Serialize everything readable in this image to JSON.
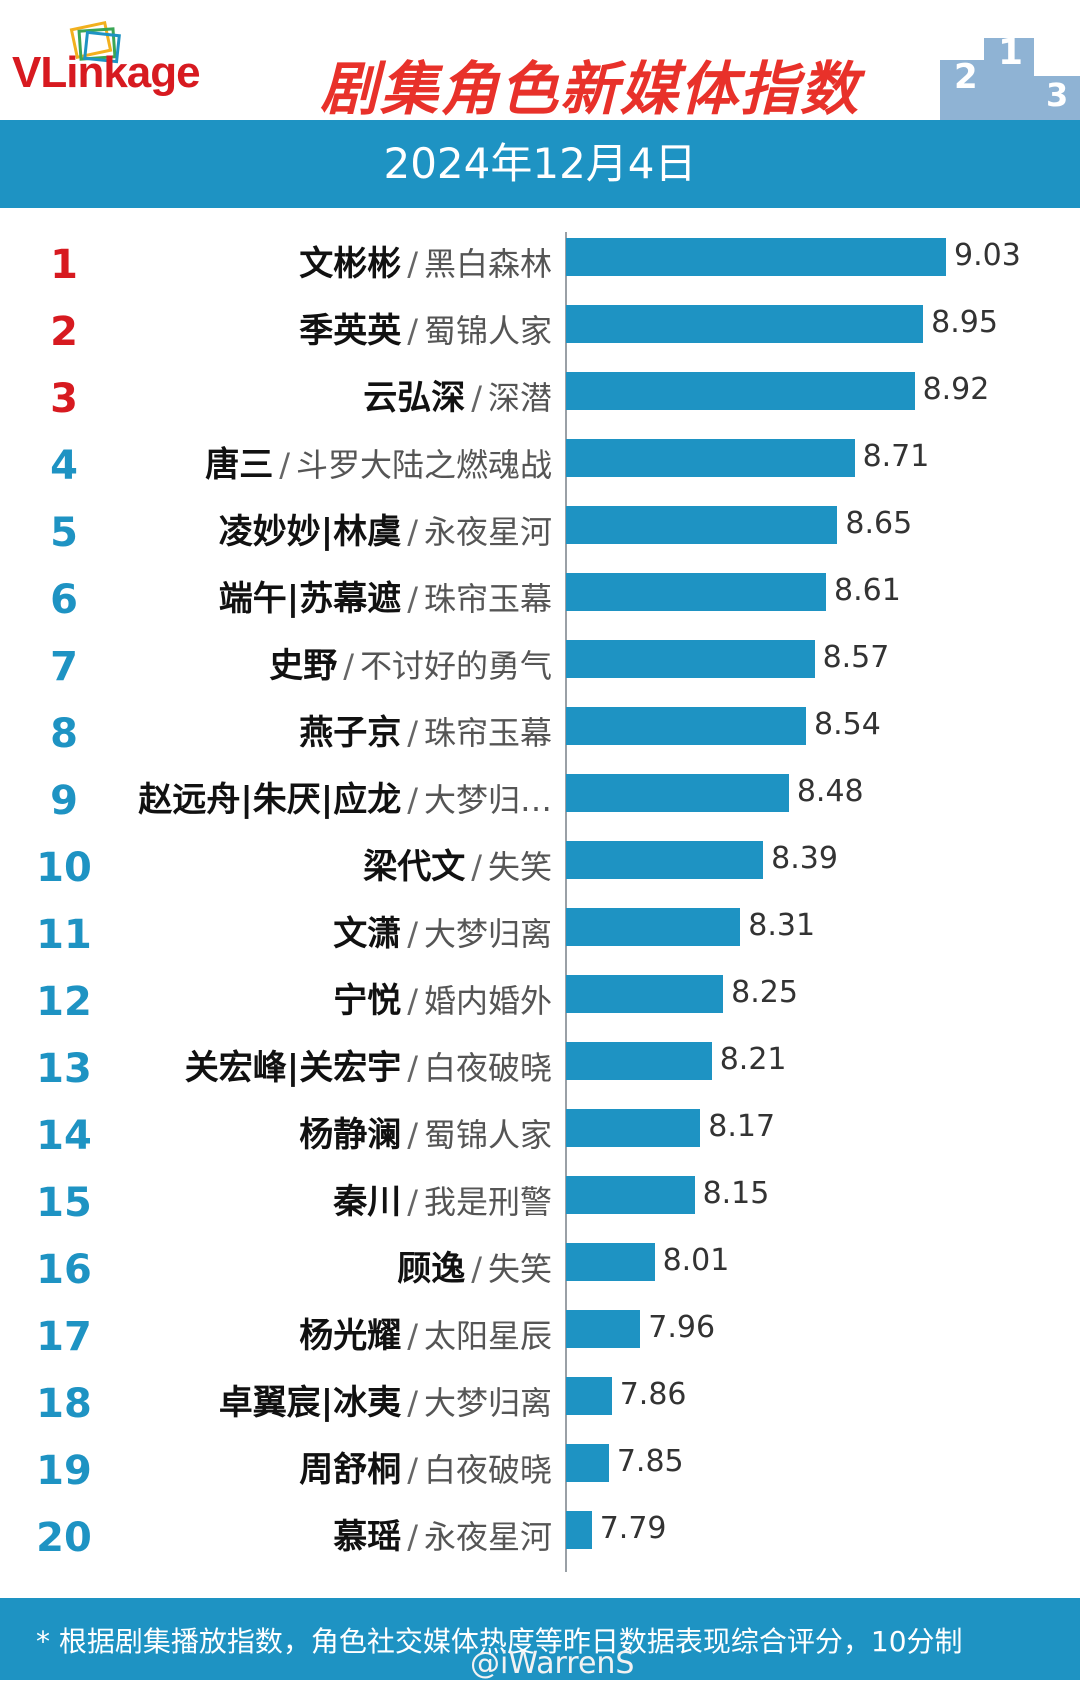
{
  "header": {
    "logo_text": "VLinkage",
    "title": "剧集角色新媒体指数",
    "date": "2024年12月4日"
  },
  "colors": {
    "bar": "#1e93c3",
    "top3_rank": "#d71a20",
    "other_rank": "#1e93c3",
    "title": "#e8312a"
  },
  "chart_data": {
    "type": "bar",
    "orientation": "horizontal",
    "title": "剧集角色新媒体指数",
    "subtitle": "2024年12月4日",
    "categories": [
      "文彬彬 / 黑白森林",
      "季英英 / 蜀锦人家",
      "云弘深 / 深潜",
      "唐三 / 斗罗大陆之燃魂战",
      "凌妙妙|林虞 / 永夜星河",
      "端午|苏幕遮 / 珠帘玉幕",
      "史野 / 不讨好的勇气",
      "燕子京 / 珠帘玉幕",
      "赵远舟|朱厌|应龙 / 大梦归…",
      "梁代文 / 失笑",
      "文潇 / 大梦归离",
      "宁悦 / 婚内婚外",
      "关宏峰|关宏宇 / 白夜破晓",
      "杨静澜 / 蜀锦人家",
      "秦川 / 我是刑警",
      "顾逸 / 失笑",
      "杨光耀 / 太阳星辰",
      "卓翼宸|冰夷 / 大梦归离",
      "周舒桐 / 白夜破晓",
      "慕瑶 / 永夜星河"
    ],
    "rows": [
      {
        "rank": "1",
        "role": "文彬彬",
        "drama": "黑白森林",
        "value": 9.03
      },
      {
        "rank": "2",
        "role": "季英英",
        "drama": "蜀锦人家",
        "value": 8.95
      },
      {
        "rank": "3",
        "role": "云弘深",
        "drama": "深潜",
        "value": 8.92
      },
      {
        "rank": "4",
        "role": "唐三",
        "drama": "斗罗大陆之燃魂战",
        "value": 8.71
      },
      {
        "rank": "5",
        "role": "凌妙妙|林虞",
        "drama": "永夜星河",
        "value": 8.65
      },
      {
        "rank": "6",
        "role": "端午|苏幕遮",
        "drama": "珠帘玉幕",
        "value": 8.61
      },
      {
        "rank": "7",
        "role": "史野",
        "drama": "不讨好的勇气",
        "value": 8.57
      },
      {
        "rank": "8",
        "role": "燕子京",
        "drama": "珠帘玉幕",
        "value": 8.54
      },
      {
        "rank": "9",
        "role": "赵远舟|朱厌|应龙",
        "drama": "大梦归…",
        "value": 8.48
      },
      {
        "rank": "10",
        "role": "梁代文",
        "drama": "失笑",
        "value": 8.39
      },
      {
        "rank": "11",
        "role": "文潇",
        "drama": "大梦归离",
        "value": 8.31
      },
      {
        "rank": "12",
        "role": "宁悦",
        "drama": "婚内婚外",
        "value": 8.25
      },
      {
        "rank": "13",
        "role": "关宏峰|关宏宇",
        "drama": "白夜破晓",
        "value": 8.21
      },
      {
        "rank": "14",
        "role": "杨静澜",
        "drama": "蜀锦人家",
        "value": 8.17
      },
      {
        "rank": "15",
        "role": "秦川",
        "drama": "我是刑警",
        "value": 8.15
      },
      {
        "rank": "16",
        "role": "顾逸",
        "drama": "失笑",
        "value": 8.01
      },
      {
        "rank": "17",
        "role": "杨光耀",
        "drama": "太阳星辰",
        "value": 7.96
      },
      {
        "rank": "18",
        "role": "卓翼宸|冰夷",
        "drama": "大梦归离",
        "value": 7.86
      },
      {
        "rank": "19",
        "role": "周舒桐",
        "drama": "白夜破晓",
        "value": 7.85
      },
      {
        "rank": "20",
        "role": "慕瑶",
        "drama": "永夜星河",
        "value": 7.79
      }
    ],
    "values": [
      9.03,
      8.95,
      8.92,
      8.71,
      8.65,
      8.61,
      8.57,
      8.54,
      8.48,
      8.39,
      8.31,
      8.25,
      8.21,
      8.17,
      8.15,
      8.01,
      7.96,
      7.86,
      7.85,
      7.79
    ],
    "xlim": [
      7.7,
      9.1
    ],
    "grid": false,
    "legend": "none"
  },
  "footer": {
    "note": "* 根据剧集播放指数，角色社交媒体热度等昨日数据表现综合评分，10分制",
    "watermark": "@iWarrenS"
  }
}
